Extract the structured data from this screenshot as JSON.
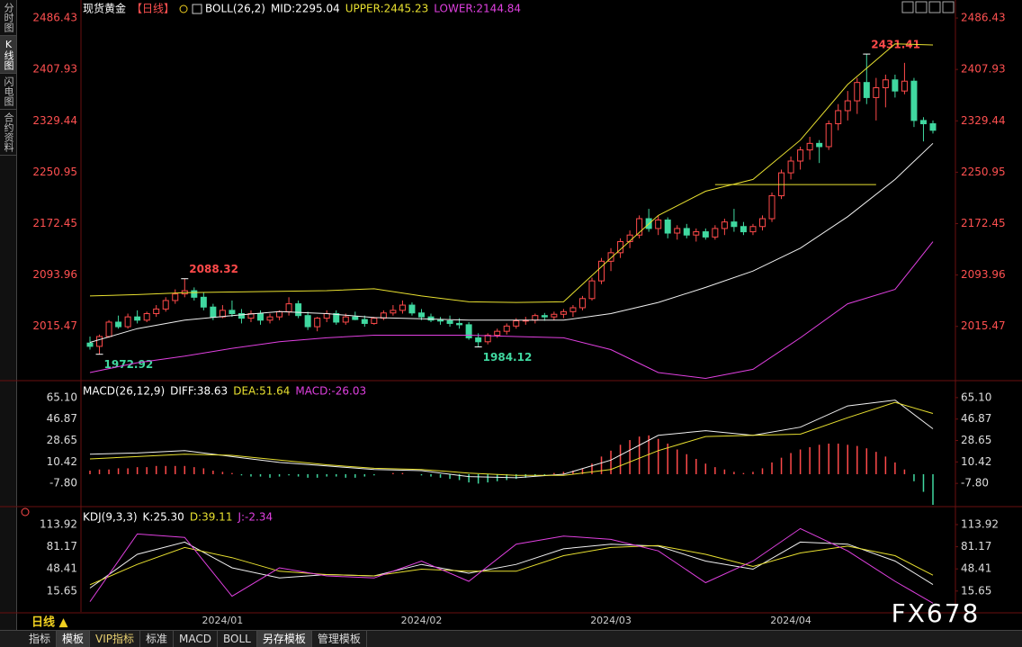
{
  "sidebar": [
    "分时图",
    "K线图",
    "闪电图",
    "合约资料"
  ],
  "footer": {
    "period": "日线 ▲",
    "tabs": [
      "指标",
      "模板",
      "VIP指标",
      "标准",
      "MACD",
      "BOLL",
      "另存模板",
      "管理模板"
    ]
  },
  "watermark": "FX678",
  "chart_data": [
    {
      "type": "candlestick",
      "title": "现货黄金",
      "period": "【日线】",
      "legend": [
        {
          "text": "BOLL(26,2)",
          "color": "#ffffff"
        },
        {
          "text": "MID:2295.04",
          "color": "#ffffff"
        },
        {
          "text": "UPPER:2445.23",
          "color": "#e8e030"
        },
        {
          "text": "LOWER:2144.84",
          "color": "#e040e0"
        }
      ],
      "categories": [
        null,
        null,
        null,
        null,
        null,
        null,
        null,
        null,
        null,
        null,
        null,
        null,
        null,
        null,
        "2024/01",
        null,
        null,
        null,
        null,
        null,
        null,
        null,
        null,
        null,
        null,
        null,
        null,
        null,
        null,
        null,
        null,
        null,
        null,
        null,
        null,
        "2024/02",
        null,
        null,
        null,
        null,
        null,
        null,
        null,
        null,
        null,
        null,
        null,
        null,
        null,
        null,
        null,
        null,
        null,
        null,
        null,
        "2024/03",
        null,
        null,
        null,
        null,
        null,
        null,
        null,
        null,
        null,
        null,
        null,
        null,
        null,
        null,
        null,
        null,
        null,
        null,
        "2024/04",
        null,
        null,
        null,
        null,
        null,
        null,
        null,
        null,
        null,
        null,
        null,
        null,
        null,
        null,
        null
      ],
      "ohlc": [
        [
          1990,
          2000,
          1980,
          1985
        ],
        [
          1985,
          2003,
          1972.92,
          2000
        ],
        [
          2000,
          2025,
          1998,
          2022
        ],
        [
          2022,
          2032,
          2012,
          2015
        ],
        [
          2015,
          2035,
          2012,
          2030
        ],
        [
          2030,
          2040,
          2020,
          2025
        ],
        [
          2025,
          2038,
          2022,
          2035
        ],
        [
          2035,
          2048,
          2030,
          2042
        ],
        [
          2042,
          2060,
          2038,
          2055
        ],
        [
          2055,
          2072,
          2050,
          2065
        ],
        [
          2065,
          2088.32,
          2060,
          2070
        ],
        [
          2070,
          2075,
          2055,
          2060
        ],
        [
          2060,
          2068,
          2040,
          2045
        ],
        [
          2045,
          2050,
          2025,
          2030
        ],
        [
          2030,
          2048,
          2028,
          2040
        ],
        [
          2040,
          2055,
          2030,
          2035
        ],
        [
          2035,
          2042,
          2020,
          2028
        ],
        [
          2028,
          2040,
          2022,
          2035
        ],
        [
          2035,
          2040,
          2018,
          2025
        ],
        [
          2025,
          2035,
          2020,
          2030
        ],
        [
          2030,
          2040,
          2025,
          2038
        ],
        [
          2038,
          2060,
          2032,
          2050
        ],
        [
          2050,
          2055,
          2028,
          2032
        ],
        [
          2032,
          2038,
          2010,
          2015
        ],
        [
          2015,
          2030,
          2008,
          2028
        ],
        [
          2028,
          2040,
          2022,
          2035
        ],
        [
          2035,
          2040,
          2018,
          2022
        ],
        [
          2022,
          2035,
          2018,
          2030
        ],
        [
          2030,
          2038,
          2025,
          2026
        ],
        [
          2026,
          2032,
          2015,
          2020
        ],
        [
          2020,
          2030,
          2018,
          2028
        ],
        [
          2028,
          2040,
          2025,
          2036
        ],
        [
          2036,
          2048,
          2032,
          2040
        ],
        [
          2040,
          2055,
          2035,
          2048
        ],
        [
          2048,
          2052,
          2032,
          2036
        ],
        [
          2036,
          2042,
          2025,
          2030
        ],
        [
          2030,
          2035,
          2022,
          2025
        ],
        [
          2025,
          2030,
          2018,
          2024
        ],
        [
          2024,
          2032,
          2015,
          2020
        ],
        [
          2020,
          2028,
          2012,
          2018
        ],
        [
          2018,
          2022,
          1995,
          1998
        ],
        [
          1998,
          2005,
          1984.12,
          1992
        ],
        [
          1992,
          2005,
          1988,
          2002
        ],
        [
          2002,
          2012,
          1998,
          2008
        ],
        [
          2008,
          2020,
          2003,
          2016
        ],
        [
          2016,
          2028,
          2012,
          2024
        ],
        [
          2024,
          2030,
          2018,
          2025
        ],
        [
          2025,
          2035,
          2020,
          2032
        ],
        [
          2032,
          2036,
          2024,
          2030
        ],
        [
          2030,
          2038,
          2025,
          2034
        ],
        [
          2034,
          2042,
          2028,
          2038
        ],
        [
          2038,
          2048,
          2030,
          2044
        ],
        [
          2044,
          2062,
          2040,
          2058
        ],
        [
          2058,
          2090,
          2055,
          2085
        ],
        [
          2085,
          2120,
          2080,
          2115
        ],
        [
          2115,
          2135,
          2100,
          2128
        ],
        [
          2128,
          2150,
          2120,
          2145
        ],
        [
          2145,
          2162,
          2135,
          2155
        ],
        [
          2155,
          2185,
          2150,
          2180
        ],
        [
          2180,
          2195,
          2160,
          2165
        ],
        [
          2165,
          2185,
          2155,
          2178
        ],
        [
          2178,
          2182,
          2150,
          2158
        ],
        [
          2158,
          2170,
          2148,
          2165
        ],
        [
          2165,
          2172,
          2150,
          2155
        ],
        [
          2155,
          2165,
          2145,
          2160
        ],
        [
          2160,
          2165,
          2148,
          2152
        ],
        [
          2152,
          2170,
          2148,
          2165
        ],
        [
          2165,
          2180,
          2155,
          2175
        ],
        [
          2175,
          2195,
          2160,
          2168
        ],
        [
          2168,
          2175,
          2155,
          2160
        ],
        [
          2160,
          2172,
          2155,
          2168
        ],
        [
          2168,
          2185,
          2162,
          2180
        ],
        [
          2180,
          2220,
          2175,
          2215
        ],
        [
          2215,
          2255,
          2210,
          2250
        ],
        [
          2250,
          2275,
          2240,
          2268
        ],
        [
          2268,
          2290,
          2255,
          2285
        ],
        [
          2285,
          2305,
          2270,
          2295
        ],
        [
          2295,
          2300,
          2265,
          2290
        ],
        [
          2290,
          2330,
          2285,
          2325
        ],
        [
          2325,
          2355,
          2315,
          2345
        ],
        [
          2345,
          2375,
          2330,
          2360
        ],
        [
          2360,
          2395,
          2340,
          2388
        ],
        [
          2388,
          2431.41,
          2355,
          2365
        ],
        [
          2365,
          2395,
          2330,
          2380
        ],
        [
          2380,
          2400,
          2350,
          2392
        ],
        [
          2392,
          2400,
          2365,
          2375
        ],
        [
          2375,
          2418,
          2370,
          2390
        ],
        [
          2390,
          2395,
          2320,
          2330
        ],
        [
          2330,
          2335,
          2298,
          2325
        ],
        [
          2325,
          2330,
          2310,
          2315
        ]
      ],
      "up_color": "#ff4a4a",
      "down_color": "#40d8a0",
      "series": [
        {
          "color": "#e8e030",
          "x": [
            0,
            5,
            10,
            15,
            20,
            25,
            30,
            35,
            40,
            45,
            50,
            55,
            60,
            65,
            70,
            75,
            80,
            85,
            89
          ],
          "values": [
            2062,
            2064,
            2067,
            2068,
            2069,
            2070,
            2073,
            2062,
            2053,
            2052,
            2053,
            2120,
            2185,
            2222,
            2240,
            2300,
            2385,
            2447,
            2445.23
          ]
        },
        {
          "color": "#f0f0f0",
          "x": [
            0,
            5,
            10,
            15,
            20,
            25,
            30,
            35,
            40,
            45,
            50,
            55,
            60,
            65,
            70,
            75,
            80,
            85,
            89
          ],
          "values": [
            1991,
            2012,
            2025,
            2032,
            2038,
            2035,
            2029,
            2027,
            2025,
            2025,
            2025,
            2035,
            2052,
            2075,
            2100,
            2135,
            2183,
            2240,
            2295.04
          ]
        },
        {
          "color": "#e040e0",
          "x": [
            0,
            5,
            10,
            15,
            20,
            25,
            30,
            35,
            40,
            45,
            50,
            55,
            60,
            65,
            70,
            75,
            80,
            85,
            89
          ],
          "values": [
            1945,
            1960,
            1970,
            1982,
            1992,
            1998,
            2002,
            2002,
            2002,
            2000,
            1998,
            1980,
            1945,
            1936,
            1950,
            1998,
            2050,
            2072,
            2144.84
          ]
        }
      ],
      "hlines": [
        {
          "value": 2232,
          "from": 66,
          "to": 83,
          "color": "#e8e030"
        }
      ],
      "ylim": [
        1934,
        2514
      ],
      "yticks": [
        2486.43,
        2407.93,
        2329.44,
        2250.95,
        2172.45,
        2093.96,
        2015.47
      ],
      "tick_color": "#ff5050"
    },
    {
      "type": "bar",
      "legend": [
        {
          "text": "MACD(26,12,9)",
          "color": "#ffffff"
        },
        {
          "text": "DIFF:38.63",
          "color": "#ffffff"
        },
        {
          "text": "DEA:51.64",
          "color": "#e8e030"
        },
        {
          "text": "MACD:-26.03",
          "color": "#e040e0"
        }
      ],
      "values": [
        3,
        4,
        4,
        5,
        5,
        6,
        6,
        7,
        7,
        7,
        7,
        6,
        5,
        3,
        2,
        1,
        -1,
        -2,
        -2,
        -3,
        -2,
        -1,
        -2,
        -3,
        -3,
        -2,
        -2,
        -3,
        -3,
        -2,
        -1,
        0,
        1,
        1,
        0,
        -1,
        -2,
        -3,
        -4,
        -5,
        -7,
        -8,
        -7,
        -6,
        -5,
        -4,
        -3,
        -2,
        -1,
        1,
        2,
        3,
        5,
        9,
        15,
        20,
        25,
        29,
        32,
        33,
        30,
        26,
        21,
        17,
        13,
        9,
        6,
        4,
        2,
        1,
        2,
        5,
        10,
        14,
        18,
        21,
        23,
        25,
        26,
        26,
        25,
        24,
        22,
        19,
        15,
        10,
        4,
        -6,
        -15,
        -26.03
      ],
      "up_color": "#ff4a4a",
      "down_color": "#40d8a0",
      "series": [
        {
          "color": "#f0f0f0",
          "x": [
            0,
            5,
            10,
            15,
            20,
            25,
            30,
            35,
            40,
            45,
            50,
            55,
            60,
            65,
            70,
            75,
            80,
            85,
            89
          ],
          "values": [
            17,
            18,
            20,
            15,
            10,
            7,
            4,
            3,
            -2,
            -3,
            0,
            12,
            33,
            37,
            33,
            40,
            58,
            63,
            38.63
          ]
        },
        {
          "color": "#e8e030",
          "x": [
            0,
            5,
            10,
            15,
            20,
            25,
            30,
            35,
            40,
            45,
            50,
            55,
            60,
            65,
            70,
            75,
            80,
            85,
            89
          ],
          "values": [
            13,
            15,
            17,
            16,
            12,
            8,
            5,
            4,
            1,
            -1,
            -1,
            4,
            20,
            32,
            33,
            34,
            48,
            61,
            51.64
          ]
        }
      ],
      "ylim": [
        -26.8,
        78
      ],
      "yticks": [
        {
          "value": 65.1,
          "label": "65.10"
        },
        46.87,
        28.65,
        10.42,
        {
          "value": -7.8,
          "label": "-7.80"
        }
      ],
      "tick_color": "#dddddd"
    },
    {
      "type": "line",
      "legend": [
        {
          "text": "KDJ(9,3,3)",
          "color": "#ffffff"
        },
        {
          "text": "K:25.30",
          "color": "#ffffff"
        },
        {
          "text": "D:39.11",
          "color": "#e8e030"
        },
        {
          "text": "J:-2.34",
          "color": "#e040e0"
        }
      ],
      "series": [
        {
          "color": "#f0f0f0",
          "x": [
            0,
            5,
            10,
            15,
            20,
            25,
            30,
            35,
            40,
            45,
            50,
            55,
            60,
            65,
            70,
            75,
            80,
            85,
            89
          ],
          "values": [
            20,
            70,
            88,
            50,
            35,
            40,
            38,
            55,
            42,
            55,
            78,
            85,
            82,
            60,
            48,
            88,
            85,
            60,
            25.3
          ]
        },
        {
          "color": "#e8e030",
          "x": [
            0,
            5,
            10,
            15,
            20,
            25,
            30,
            35,
            40,
            45,
            50,
            55,
            60,
            65,
            70,
            75,
            80,
            85,
            89
          ],
          "values": [
            25,
            55,
            80,
            65,
            45,
            40,
            38,
            48,
            45,
            45,
            68,
            80,
            83,
            70,
            52,
            72,
            82,
            68,
            39.11
          ]
        },
        {
          "color": "#e040e0",
          "x": [
            0,
            5,
            10,
            15,
            20,
            25,
            30,
            35,
            40,
            45,
            50,
            55,
            60,
            65,
            70,
            75,
            80,
            85,
            89
          ],
          "values": [
            0,
            100,
            95,
            8,
            50,
            38,
            35,
            60,
            30,
            85,
            97,
            92,
            75,
            28,
            60,
            108,
            75,
            30,
            -2.34
          ]
        }
      ],
      "ylim": [
        -15.2,
        137.8
      ],
      "yticks": [
        113.92,
        81.17,
        48.41,
        15.65
      ],
      "tick_color": "#dddddd"
    }
  ]
}
